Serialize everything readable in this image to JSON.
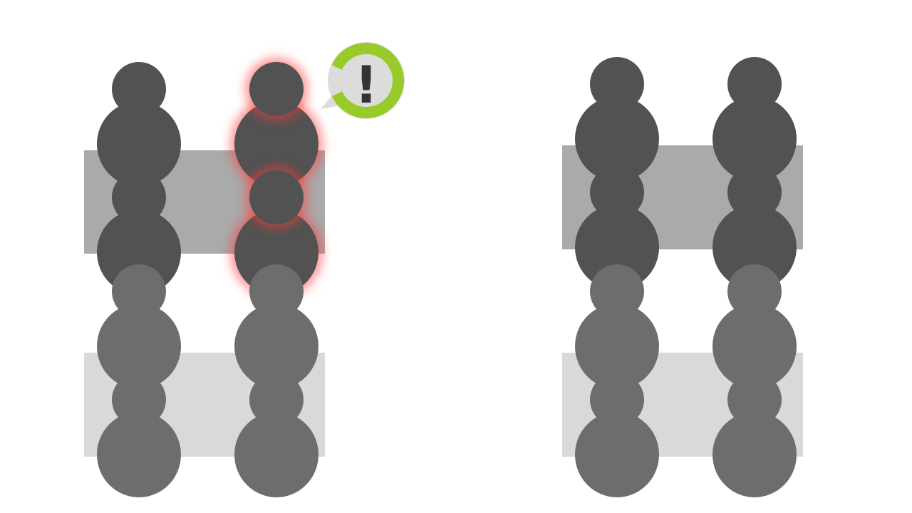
{
  "colors": {
    "background": "#ffffff",
    "table_front": "#aaaaaa",
    "table_back": "#d9d9d9",
    "person_front": "#525252",
    "person_back": "#6d6d6d",
    "alert_glow": "#ff3c3c",
    "alert_ring": "#98cb2a",
    "alert_bubble": "#dcdcdc",
    "alert_mark": "#333333"
  },
  "icons": {
    "alert": "exclamation-icon",
    "person": "person-icon"
  },
  "alert": {
    "mark": "!"
  }
}
